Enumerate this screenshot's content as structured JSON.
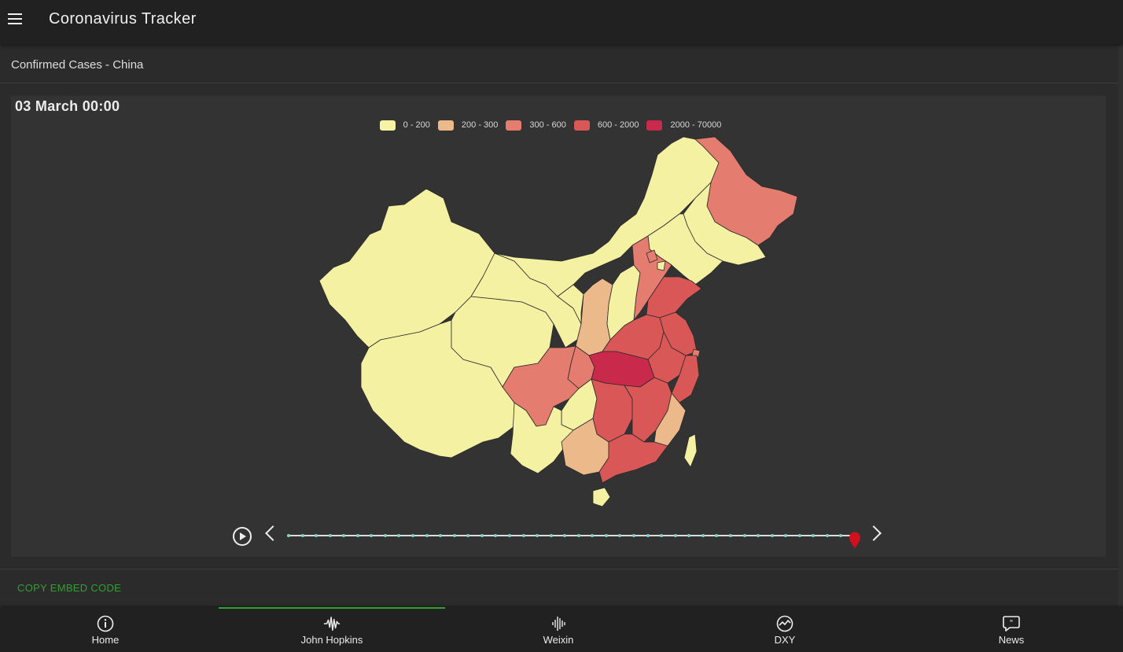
{
  "app": {
    "title": "Coronavirus Tracker"
  },
  "card": {
    "title": "Confirmed Cases - China",
    "date": "03 March 00:00",
    "embed_label": "COPY EMBED CODE"
  },
  "legend": [
    {
      "label": "0 - 200",
      "color": "#f7f3a4"
    },
    {
      "label": "200 - 300",
      "color": "#ecb98a"
    },
    {
      "label": "300 - 600",
      "color": "#e57c70"
    },
    {
      "label": "600 - 2000",
      "color": "#d95757"
    },
    {
      "label": "2000 - 70000",
      "color": "#c9294a"
    }
  ],
  "timeline": {
    "steps": 42,
    "current_step": 42
  },
  "nav": [
    {
      "label": "Home",
      "icon": "info-icon"
    },
    {
      "label": "John Hopkins",
      "icon": "soundwave-icon",
      "active": true
    },
    {
      "label": "Weixin",
      "icon": "bars-icon"
    },
    {
      "label": "DXY",
      "icon": "chart-icon"
    },
    {
      "label": "News",
      "icon": "chat-quote-icon"
    }
  ]
}
